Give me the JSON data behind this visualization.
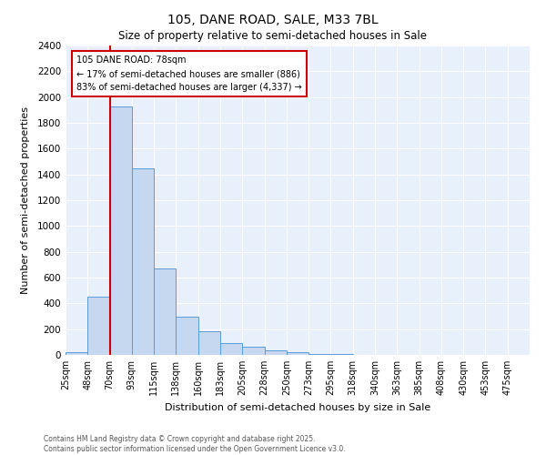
{
  "title": "105, DANE ROAD, SALE, M33 7BL",
  "subtitle": "Size of property relative to semi-detached houses in Sale",
  "xlabel": "Distribution of semi-detached houses by size in Sale",
  "ylabel": "Number of semi-detached properties",
  "bin_labels": [
    "25sqm",
    "48sqm",
    "70sqm",
    "93sqm",
    "115sqm",
    "138sqm",
    "160sqm",
    "183sqm",
    "205sqm",
    "228sqm",
    "250sqm",
    "273sqm",
    "295sqm",
    "318sqm",
    "340sqm",
    "363sqm",
    "385sqm",
    "408sqm",
    "430sqm",
    "453sqm",
    "475sqm"
  ],
  "bar_values": [
    20,
    450,
    1930,
    1450,
    670,
    300,
    185,
    90,
    65,
    35,
    20,
    10,
    5,
    2,
    1,
    1,
    0,
    0,
    0,
    0,
    0
  ],
  "bar_color": "#c5d8f0",
  "bar_edge_color": "#5b9bd5",
  "background_color": "#e8f0fb",
  "grid_color": "#ffffff",
  "vline_color": "#cc0000",
  "annotation_title": "105 DANE ROAD: 78sqm",
  "annotation_line1": "← 17% of semi-detached houses are smaller (886)",
  "annotation_line2": "83% of semi-detached houses are larger (4,337) →",
  "annotation_box_color": "white",
  "annotation_box_edge": "#cc0000",
  "ylim": [
    0,
    2400
  ],
  "vline_bin_index": 2,
  "footer_line1": "Contains HM Land Registry data © Crown copyright and database right 2025.",
  "footer_line2": "Contains public sector information licensed under the Open Government Licence v3.0."
}
